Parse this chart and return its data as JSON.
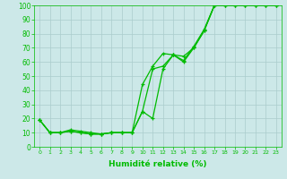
{
  "title": "",
  "xlabel": "Humidité relative (%)",
  "ylabel": "",
  "xlim": [
    -0.5,
    23.5
  ],
  "ylim": [
    0,
    100
  ],
  "xticks": [
    0,
    1,
    2,
    3,
    4,
    5,
    6,
    7,
    8,
    9,
    10,
    11,
    12,
    13,
    14,
    15,
    16,
    17,
    18,
    19,
    20,
    21,
    22,
    23
  ],
  "yticks": [
    0,
    10,
    20,
    30,
    40,
    50,
    60,
    70,
    80,
    90,
    100
  ],
  "background_color": "#cce8e8",
  "grid_color": "#aacccc",
  "line_color": "#00bb00",
  "series": [
    [
      19,
      10,
      10,
      12,
      11,
      10,
      9,
      10,
      10,
      10,
      44,
      57,
      66,
      65,
      61,
      71,
      83,
      100,
      100,
      100,
      100,
      100,
      100,
      100
    ],
    [
      19,
      10,
      10,
      11,
      10,
      9,
      9,
      10,
      10,
      10,
      25,
      20,
      55,
      65,
      60,
      70,
      82,
      100,
      100,
      100,
      100,
      100,
      100,
      100
    ],
    [
      19,
      10,
      10,
      11,
      10,
      9,
      9,
      10,
      10,
      10,
      25,
      55,
      57,
      65,
      64,
      70,
      82,
      100,
      100,
      100,
      100,
      100,
      100,
      100
    ]
  ],
  "xlabel_fontsize": 6.5,
  "xlabel_fontweight": "bold",
  "tick_fontsize_x": 4.5,
  "tick_fontsize_y": 5.5
}
